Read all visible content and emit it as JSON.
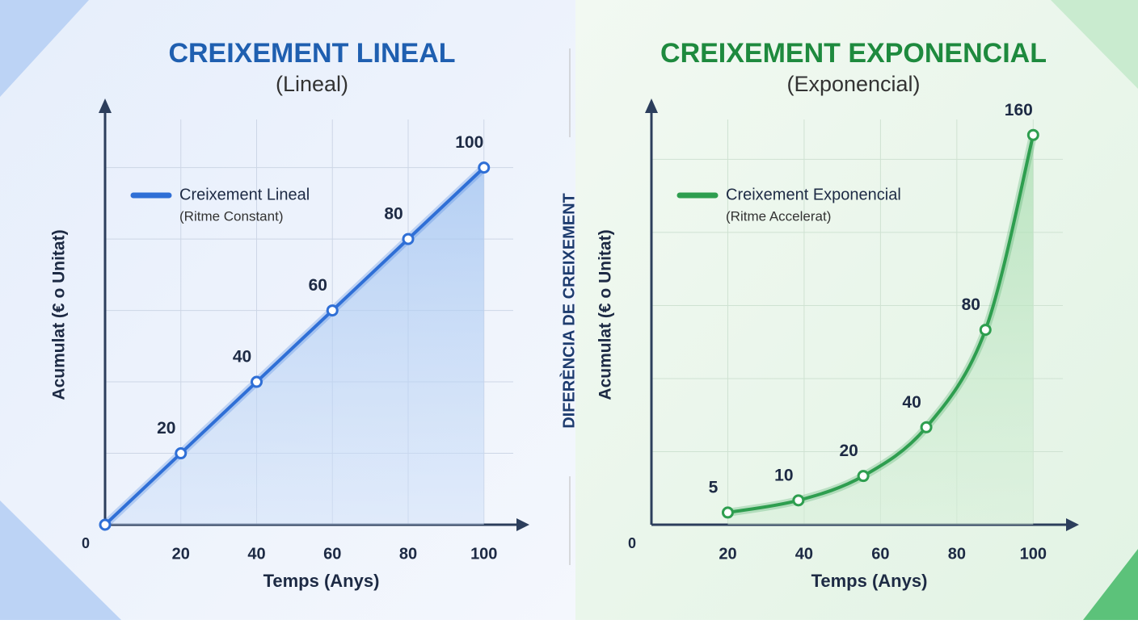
{
  "divider_label": "DIFERÈNCIA DE CREIXEMENT",
  "chart_data": [
    {
      "type": "line",
      "title": "CREIXEMENT LINEAL",
      "subtitle": "(Lineal)",
      "x_label": "Temps (Anys)",
      "y_label": "Acumulat (€ o Unitat)",
      "x": [
        0,
        20,
        40,
        60,
        80,
        100
      ],
      "series": [
        {
          "name": "Creixement Lineal",
          "description": "(Ritme Constant)",
          "color": "#2f6fd6",
          "values": [
            0,
            20,
            40,
            60,
            80,
            100
          ],
          "curve": "straight",
          "labeled": [
            false,
            true,
            true,
            true,
            true,
            true
          ]
        }
      ],
      "xlim": [
        0,
        112
      ],
      "ylim": [
        0,
        118
      ],
      "xticks": [
        0,
        20,
        40,
        60,
        80,
        100
      ],
      "yticks": [
        20,
        40,
        60,
        80,
        100
      ],
      "grid": true,
      "legend": "upper left"
    },
    {
      "type": "line",
      "title": "CREIXEMENT EXPONENCIAL",
      "subtitle": "(Exponencial)",
      "x_label": "Temps (Anys)",
      "y_label": "Acumulat (€ o Unitat)",
      "x": [
        20,
        38.5,
        55.5,
        72,
        87.5,
        100
      ],
      "series": [
        {
          "name": "Creixement Exponencial",
          "description": "(Ritme Accelerat)",
          "color": "#2e9e4f",
          "values": [
            5,
            10,
            20,
            40,
            80,
            160
          ],
          "curve": "smooth",
          "labeled": [
            true,
            true,
            true,
            true,
            true,
            true
          ]
        }
      ],
      "xlim": [
        0,
        112
      ],
      "ylim": [
        0,
        173
      ],
      "xticks": [
        0,
        20,
        40,
        60,
        80,
        100
      ],
      "yticks": [
        30,
        60,
        90,
        120,
        150
      ],
      "grid": true,
      "legend": "upper left"
    }
  ]
}
